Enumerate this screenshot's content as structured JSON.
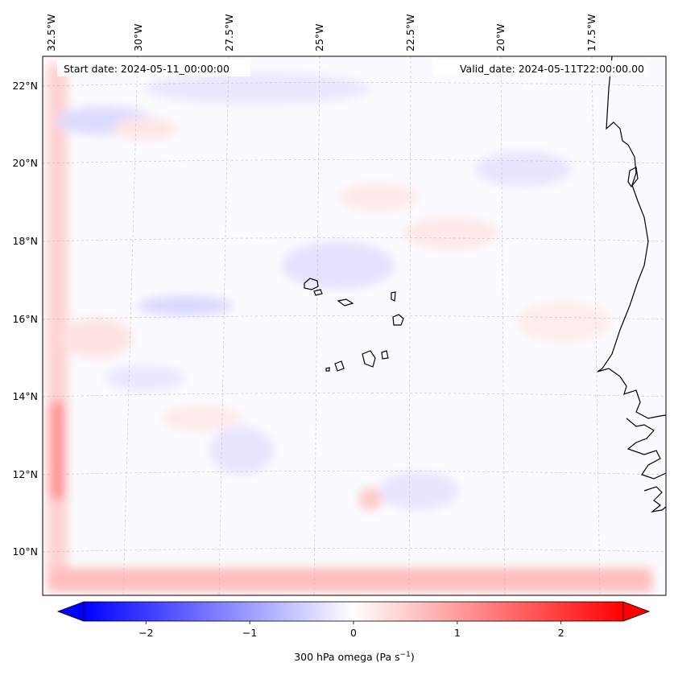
{
  "map": {
    "start_date_label": "Start date: 2024-05-11_00:00:00",
    "valid_date_label": "Valid_date: 2024-05-11T22:00:00.00",
    "lon_labels": [
      "32.5°W",
      "30°W",
      "27.5°W",
      "25°W",
      "22.5°W",
      "20°W",
      "17.5°W"
    ],
    "lat_labels": [
      "22°N",
      "20°N",
      "18°N",
      "16°N",
      "14°N",
      "12°N",
      "10°N"
    ],
    "field": "omega",
    "pressure_level": "300 hPa",
    "colormap": "bwr",
    "colors": {
      "negative": "#0000ff",
      "zero": "#ffffff",
      "positive": "#ff0000",
      "coastline": "#000000"
    }
  },
  "colorbar": {
    "label_main": "300 hPa omega (Pa s",
    "label_sup": "−1",
    "label_close": ")",
    "ticks": [
      "−2",
      "−1",
      "0",
      "1",
      "2"
    ],
    "tick_values": [
      -2,
      -1,
      0,
      1,
      2
    ],
    "range": [
      -2.6,
      2.6
    ],
    "extend": "both"
  }
}
